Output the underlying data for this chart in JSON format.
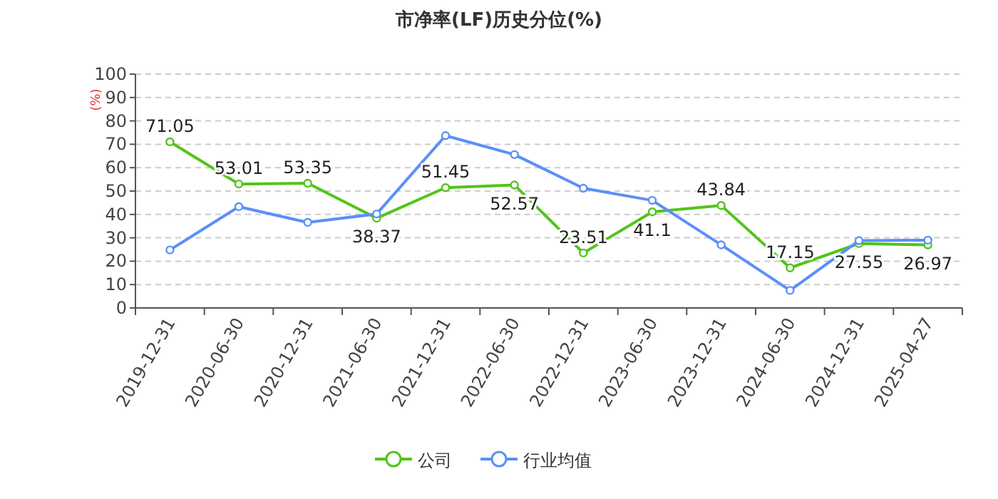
{
  "chart_data": {
    "type": "line",
    "title": "市净率(LF)历史分位(%)",
    "ylabel": "(%)",
    "categories": [
      "2019-12-31",
      "2020-06-30",
      "2020-12-31",
      "2021-06-30",
      "2021-12-31",
      "2022-06-30",
      "2022-12-31",
      "2023-06-30",
      "2023-12-31",
      "2024-06-30",
      "2024-12-31",
      "2025-04-27"
    ],
    "series": [
      {
        "name": "公司",
        "color": "#52c41a",
        "values": [
          71.05,
          53.01,
          53.35,
          38.37,
          51.45,
          52.57,
          23.51,
          41.1,
          43.84,
          17.15,
          27.55,
          26.97
        ],
        "value_labels": [
          "71.05",
          "53.01",
          "53.35",
          "38.37",
          "51.45",
          "52.57",
          "23.51",
          "41.1",
          "43.84",
          "17.15",
          "27.55",
          "26.97"
        ]
      },
      {
        "name": "行业均值",
        "color": "#5b8ff9",
        "values": [
          24.8,
          43.3,
          36.6,
          40.2,
          73.7,
          65.6,
          51.2,
          46,
          27,
          7.5,
          28.8,
          29
        ]
      }
    ],
    "ylim": [
      0,
      100
    ],
    "yticks": [
      0,
      10,
      20,
      30,
      40,
      50,
      60,
      70,
      80,
      90,
      100
    ],
    "grid": "y",
    "legend": "bottom",
    "marker": "circle",
    "line_style": "solid"
  }
}
